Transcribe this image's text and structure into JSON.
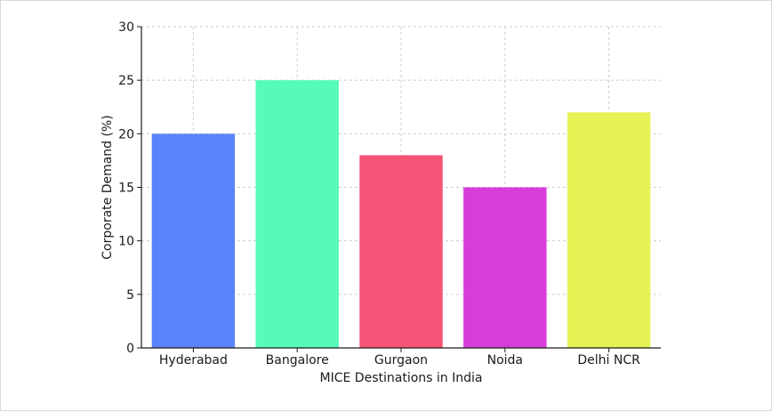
{
  "chart_data": {
    "type": "bar",
    "title": "",
    "xlabel": "MICE Destinations in India",
    "ylabel": "Corporate Demand (%)",
    "categories": [
      "Hyderabad",
      "Bangalore",
      "Gurgaon",
      "Noida",
      "Delhi NCR"
    ],
    "values": [
      20,
      25,
      18,
      15,
      22
    ],
    "colors": [
      "#5b84fb",
      "#56fbbc",
      "#f65577",
      "#d53edb",
      "#e6f254"
    ],
    "ylim": [
      0,
      30
    ],
    "yticks": [
      0,
      5,
      10,
      15,
      20,
      25,
      30
    ],
    "grid": true,
    "grid_color": "#cccccc",
    "legend": false
  }
}
